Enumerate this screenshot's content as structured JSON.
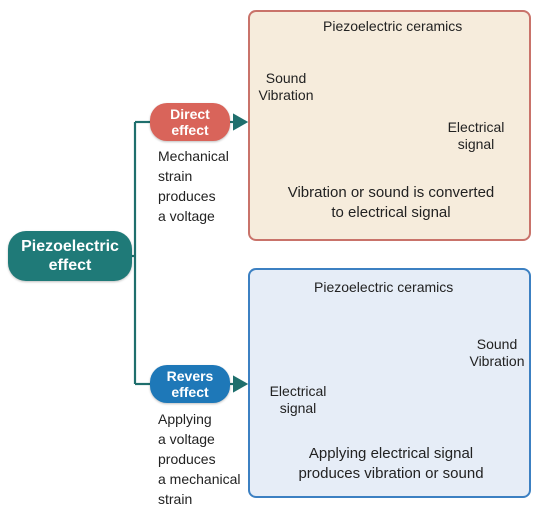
{
  "main_node": {
    "label": "Piezoelectric\neffect"
  },
  "direct": {
    "label": "Direct\neffect",
    "description": "Mechanical\nstrain\nproduces\na voltage",
    "panel": {
      "title": "Piezoelectric ceramics",
      "input_label": "Sound\nVibration",
      "output_label": "Electrical\nsignal",
      "caption": "Vibration or sound is converted\nto electrical signal"
    }
  },
  "reverse": {
    "label": "Revers\neffect",
    "description": "Applying\na voltage\nproduces\na mechanical\nstrain",
    "panel": {
      "title": "Piezoelectric ceramics",
      "input_label": "Electrical\nsignal",
      "output_label": "Sound\nVibration",
      "caption": "Applying electrical signal\nproduces vibration or sound"
    }
  },
  "colors": {
    "main": "#1f7a78",
    "direct": "#d9645a",
    "reverse": "#1e78b8",
    "connector": "#1f6f6d",
    "sound_waves": "#b04c9c",
    "electric_wave": "#d64a36"
  }
}
